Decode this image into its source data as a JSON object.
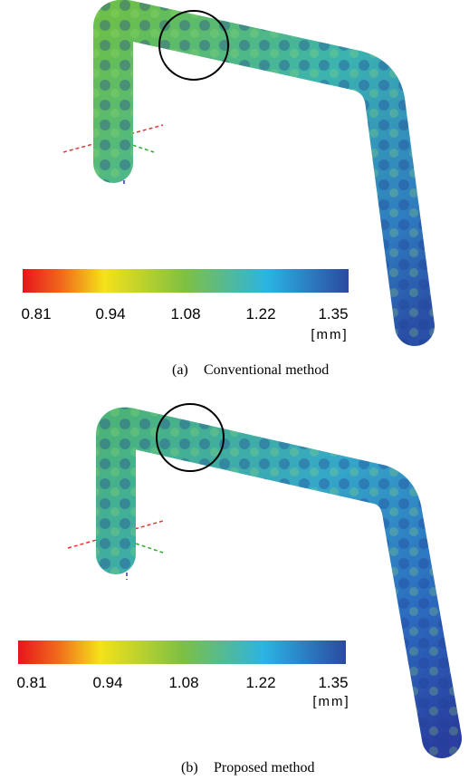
{
  "figures": [
    {
      "colorbar": {
        "ticks": [
          "0.81",
          "0.94",
          "1.08",
          "1.22",
          "1.35"
        ],
        "unit": "[mm]"
      },
      "caption": {
        "label": "(a)",
        "text": "Conventional method"
      }
    },
    {
      "colorbar": {
        "ticks": [
          "0.81",
          "0.94",
          "1.08",
          "1.22",
          "1.35"
        ],
        "unit": "[mm]"
      },
      "caption": {
        "label": "(b)",
        "text": "Proposed method"
      }
    }
  ]
}
